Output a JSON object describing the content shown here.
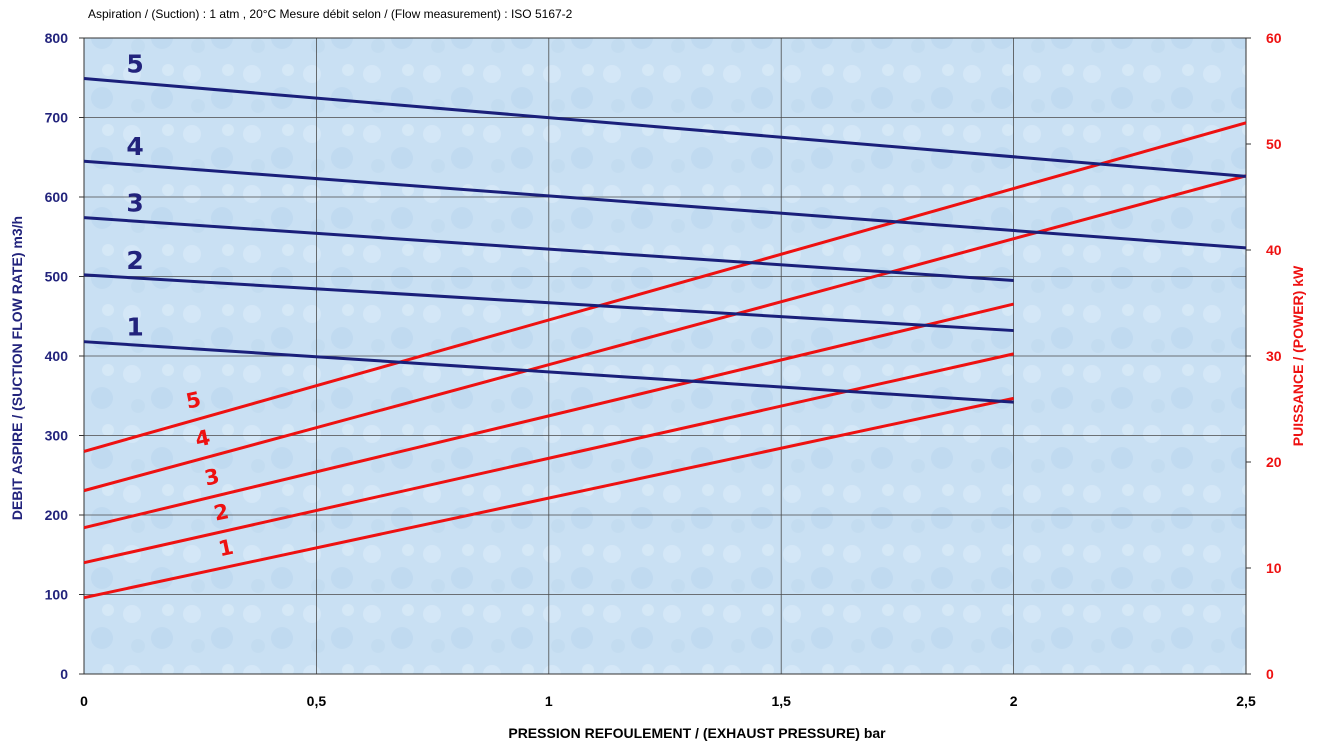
{
  "subtitle": "Aspiration / (Suction) : 1 atm , 20°C  Mesure débit selon / (Flow measurement) : ISO 5167-2",
  "colors": {
    "flow": "#1a1f7a",
    "power": "#ee1111",
    "plot_bg": "#c7dff2",
    "grid": "#4a4a4a"
  },
  "chart_data": {
    "type": "line",
    "xlabel": "PRESSION REFOULEMENT / (EXHAUST PRESSURE) bar",
    "ylabel_left": "DEBIT ASPIRE / (SUCTION FLOW RATE) m3/h",
    "ylabel_right": "PUISSANCE / (POWER) kW",
    "xlim": [
      0,
      2.5
    ],
    "ylim_left": [
      0,
      800
    ],
    "ylim_right": [
      0,
      60
    ],
    "x_ticks": [
      "0",
      "0,5",
      "1",
      "1,5",
      "2",
      "2,5"
    ],
    "y_ticks_left": [
      "0",
      "100",
      "200",
      "300",
      "400",
      "500",
      "600",
      "700",
      "800"
    ],
    "y_ticks_right": [
      "0",
      "10",
      "20",
      "30",
      "40",
      "50",
      "60"
    ],
    "grid": true,
    "flow_series": [
      {
        "name": "1",
        "axis": "left",
        "x": [
          0,
          2
        ],
        "y": [
          418,
          342
        ]
      },
      {
        "name": "2",
        "axis": "left",
        "x": [
          0,
          2
        ],
        "y": [
          502,
          432
        ]
      },
      {
        "name": "3",
        "axis": "left",
        "x": [
          0,
          2
        ],
        "y": [
          574,
          495
        ]
      },
      {
        "name": "4",
        "axis": "left",
        "x": [
          0,
          2.5
        ],
        "y": [
          645,
          536
        ]
      },
      {
        "name": "5",
        "axis": "left",
        "x": [
          0,
          2.5
        ],
        "y": [
          749,
          626
        ]
      }
    ],
    "power_series": [
      {
        "name": "1",
        "axis": "right",
        "x": [
          0,
          2
        ],
        "y": [
          7.2,
          26.0
        ]
      },
      {
        "name": "2",
        "axis": "right",
        "x": [
          0,
          2
        ],
        "y": [
          10.5,
          30.2
        ]
      },
      {
        "name": "3",
        "axis": "right",
        "x": [
          0,
          2
        ],
        "y": [
          13.8,
          34.9
        ]
      },
      {
        "name": "4",
        "axis": "right",
        "x": [
          0,
          2.5
        ],
        "y": [
          17.3,
          47.0
        ]
      },
      {
        "name": "5",
        "axis": "right",
        "x": [
          0,
          2.5
        ],
        "y": [
          21.0,
          52.0
        ]
      }
    ]
  }
}
